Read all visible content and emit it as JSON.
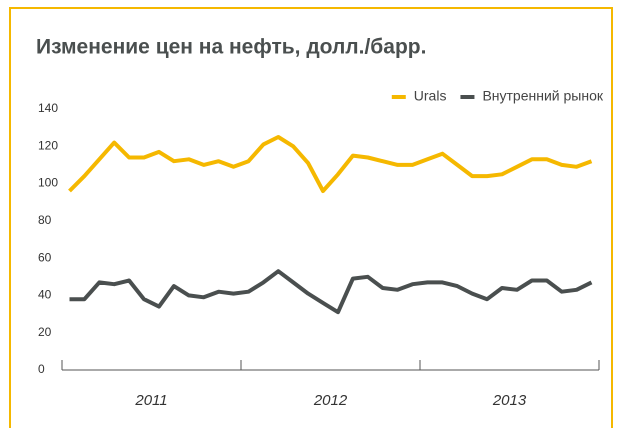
{
  "chart_data": {
    "type": "line",
    "title": "Изменение цен на нефть, долл./барр.",
    "categories": [
      null,
      null,
      null,
      null,
      null,
      null,
      null,
      null,
      null,
      null,
      null,
      null,
      null,
      null,
      null,
      null,
      null,
      null,
      null,
      null,
      null,
      null,
      null,
      null,
      null,
      null,
      null,
      null,
      null,
      null,
      null,
      null,
      null,
      null,
      null,
      null
    ],
    "x_groups": [
      "2011",
      "2012",
      "2013"
    ],
    "series": [
      {
        "name": "Urals",
        "color": "#f5b800",
        "values": [
          96,
          104,
          113,
          122,
          114,
          114,
          117,
          112,
          113,
          110,
          112,
          109,
          112,
          121,
          125,
          120,
          111,
          96,
          105,
          115,
          114,
          112,
          110,
          110,
          113,
          116,
          110,
          104,
          104,
          105,
          109,
          113,
          113,
          110,
          109,
          112
        ]
      },
      {
        "name": "Внутренний рынок",
        "color": "#4a4f4f",
        "values": [
          38,
          38,
          47,
          46,
          48,
          38,
          34,
          45,
          40,
          39,
          42,
          41,
          42,
          47,
          53,
          47,
          41,
          36,
          31,
          49,
          50,
          44,
          43,
          46,
          47,
          47,
          45,
          41,
          38,
          44,
          43,
          48,
          48,
          42,
          43,
          47
        ]
      }
    ],
    "ylim": [
      0,
      140
    ],
    "yticks": [
      0,
      20,
      40,
      60,
      80,
      100,
      120,
      140
    ],
    "grid": false,
    "legend": "top-right"
  }
}
